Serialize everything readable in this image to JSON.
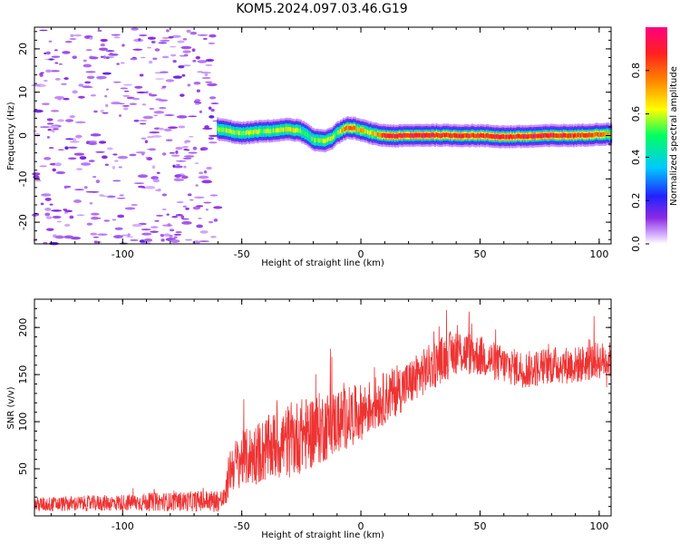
{
  "chart_data": [
    {
      "type": "heatmap",
      "title": "KOM5.2024.097.03.46.G19",
      "xlabel": "Height of straight line (km)",
      "ylabel": "Frequency (Hz)",
      "xlim": [
        -137,
        105
      ],
      "ylim": [
        -25,
        25
      ],
      "x_ticks": [
        -100,
        -50,
        0,
        50,
        100
      ],
      "y_ticks": [
        -20,
        -10,
        0,
        10,
        20
      ],
      "noise_region_x": [
        -137,
        -60
      ],
      "signal_start_x": -60,
      "colorbar": {
        "label": "Normalized spectral amplitude",
        "range": [
          0,
          1
        ],
        "ticks": [
          0.0,
          0.2,
          0.4,
          0.6,
          0.8
        ],
        "colormap": "rainbow"
      },
      "signal_ridge": {
        "x": [
          -60,
          -55,
          -50,
          -45,
          -40,
          -35,
          -30,
          -25,
          -22,
          -20,
          -15,
          -12,
          -10,
          -7,
          -5,
          -2,
          0,
          3,
          6,
          10,
          15,
          20,
          30,
          40,
          50,
          60,
          70,
          80,
          90,
          100,
          105
        ],
        "y": [
          1.5,
          1.0,
          0.5,
          0.8,
          1.0,
          1.2,
          1.5,
          1.0,
          0.0,
          -1.0,
          -1.2,
          -0.5,
          0.5,
          1.5,
          1.8,
          1.6,
          1.2,
          0.8,
          0.3,
          0.0,
          -0.1,
          0.0,
          0.1,
          0.0,
          0.0,
          -0.3,
          -0.2,
          0.0,
          0.0,
          0.3,
          0.3
        ],
        "amplitude": [
          0.55,
          0.6,
          0.55,
          0.6,
          0.55,
          0.6,
          0.65,
          0.55,
          0.5,
          0.55,
          0.6,
          0.6,
          0.55,
          0.75,
          0.8,
          0.75,
          0.7,
          0.65,
          0.7,
          0.85,
          0.9,
          0.9,
          0.9,
          0.9,
          0.85,
          0.9,
          0.9,
          0.9,
          0.85,
          0.8,
          0.75
        ]
      }
    },
    {
      "type": "line",
      "xlabel": "Height of straight line (km)",
      "ylabel": "SNR (v/v)",
      "xlim": [
        -137,
        105
      ],
      "ylim": [
        0,
        230
      ],
      "x_ticks": [
        -100,
        -50,
        0,
        50,
        100
      ],
      "y_ticks": [
        50,
        100,
        150,
        200
      ],
      "color": "#ee3333",
      "envelope": {
        "x": [
          -137,
          -120,
          -100,
          -80,
          -60,
          -57,
          -55,
          -50,
          -40,
          -30,
          -20,
          -10,
          0,
          10,
          20,
          30,
          40,
          50,
          60,
          70,
          80,
          90,
          100,
          105
        ],
        "mean": [
          12,
          13,
          14,
          15,
          16,
          18,
          50,
          60,
          70,
          80,
          90,
          100,
          110,
          125,
          140,
          160,
          175,
          170,
          160,
          155,
          160,
          160,
          165,
          165
        ],
        "spread": [
          8,
          8,
          9,
          10,
          12,
          12,
          25,
          30,
          35,
          40,
          40,
          35,
          30,
          28,
          25,
          25,
          25,
          22,
          20,
          20,
          20,
          20,
          20,
          20
        ]
      }
    }
  ]
}
